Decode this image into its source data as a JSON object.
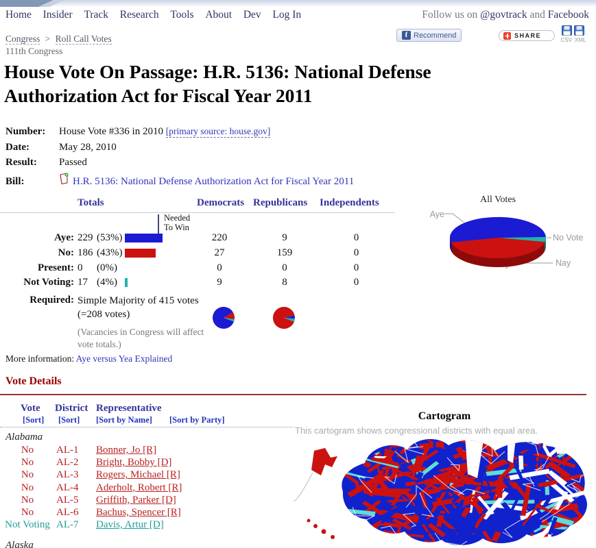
{
  "header": {
    "nav": [
      "Home",
      "Insider",
      "Track",
      "Research",
      "Tools",
      "About",
      "Dev",
      "Log In"
    ],
    "follow": {
      "prefix": "Follow us on",
      "twitter": "@govtrack",
      "and": "and",
      "facebook": "Facebook"
    },
    "breadcrumb": {
      "congress": "Congress",
      "sep": ">",
      "rollcall": "Roll Call Votes"
    },
    "session": "111th Congress",
    "buttons": {
      "recommend": "Recommend",
      "share": "SHARE",
      "csv": "CSV",
      "xml": "XML"
    }
  },
  "title": "House Vote On Passage: H.R. 5136: National Defense Authorization Act for Fiscal Year 2011",
  "meta": {
    "number_label": "Number:",
    "number_value": "House Vote #336 in 2010",
    "number_link": "[primary source: house.gov]",
    "date_label": "Date:",
    "date_value": "May 28, 2010",
    "result_label": "Result:",
    "result_value": "Passed",
    "bill_label": "Bill:",
    "bill_link": "H.R. 5136: National Defense Authorization Act for Fiscal Year 2011"
  },
  "totals": {
    "headers": {
      "totals": "Totals",
      "democrats": "Democrats",
      "republicans": "Republicans",
      "independents": "Independents"
    },
    "needed_line1": "Needed",
    "needed_line2": "To Win",
    "rows": [
      {
        "label": "Aye:",
        "count": "229",
        "pct": "(53%)",
        "d": "220",
        "r": "9",
        "i": "0"
      },
      {
        "label": "No:",
        "count": "186",
        "pct": "(43%)",
        "d": "27",
        "r": "159",
        "i": "0"
      },
      {
        "label": "Present:",
        "count": "0",
        "pct": "(0%)",
        "d": "0",
        "r": "0",
        "i": "0"
      },
      {
        "label": "Not Voting:",
        "count": "17",
        "pct": "(4%)",
        "d": "9",
        "r": "8",
        "i": "0"
      }
    ],
    "required_label": "Required:",
    "required_value": "Simple Majority of 415 votes (=208 votes)",
    "vacancies": "(Vacancies in Congress will affect vote totals.)"
  },
  "more_info": {
    "label": "More information:",
    "link": "Aye versus Yea Explained"
  },
  "chart_data": [
    {
      "type": "pie",
      "title": "All Votes",
      "labels": [
        "Aye",
        "Nay",
        "No Vote"
      ],
      "values": [
        229,
        186,
        17
      ],
      "colors": [
        "#1b1bd3",
        "#cc1111",
        "#1fb3ab"
      ],
      "style": "3d",
      "legend_position": "callouts"
    },
    {
      "type": "pie",
      "title": "Democrats",
      "labels": [
        "Aye",
        "No",
        "Not Voting"
      ],
      "values": [
        220,
        27,
        9
      ],
      "colors": [
        "#1b1bd3",
        "#cc1111",
        "#1fb3ab"
      ]
    },
    {
      "type": "pie",
      "title": "Republicans",
      "labels": [
        "Aye",
        "No",
        "Not Voting"
      ],
      "values": [
        9,
        159,
        8
      ],
      "colors": [
        "#1b1bd3",
        "#cc1111",
        "#1fb3ab"
      ]
    },
    {
      "type": "bar",
      "title": "Vote Totals",
      "categories": [
        "Aye",
        "No",
        "Present",
        "Not Voting"
      ],
      "values": [
        229,
        186,
        0,
        17
      ],
      "colors": [
        "#1b1bd3",
        "#cc1111",
        "#888888",
        "#1fb3ab"
      ],
      "needed_to_win": 208,
      "needed_label": "Needed To Win"
    }
  ],
  "vote_details": {
    "heading": "Vote Details",
    "col_vote": "Vote",
    "col_vote_sort": "[Sort]",
    "col_district": "District",
    "col_district_sort": "[Sort]",
    "col_rep": "Representative",
    "col_rep_sort_name": "[Sort by Name]",
    "col_rep_sort_party": "[Sort by Party]",
    "state1": "Alabama",
    "rows": [
      {
        "vote": "No",
        "district": "AL-1",
        "rep": "Bonner, Jo [R]"
      },
      {
        "vote": "No",
        "district": "AL-2",
        "rep": "Bright, Bobby [D]"
      },
      {
        "vote": "No",
        "district": "AL-3",
        "rep": "Rogers, Michael [R]"
      },
      {
        "vote": "No",
        "district": "AL-4",
        "rep": "Aderholt, Robert [R]"
      },
      {
        "vote": "No",
        "district": "AL-5",
        "rep": "Griffith, Parker [D]"
      },
      {
        "vote": "No",
        "district": "AL-6",
        "rep": "Bachus, Spencer [R]"
      },
      {
        "vote": "Not Voting",
        "district": "AL-7",
        "rep": "Davis, Artur [D]"
      }
    ],
    "state2": "Alaska"
  },
  "cartogram": {
    "title": "Cartogram",
    "caption": "This cartogram shows congressional districts with equal area.",
    "colors": {
      "red": "#cc1111",
      "blue": "#1122cc",
      "teal": "#5fdcd6",
      "border": "#ffffff"
    }
  },
  "colors": {
    "aye_blue": "#1b1bd3",
    "nay_red": "#cc1111",
    "not_voting_teal": "#1fb3ab",
    "no_text_red": "#bb2020",
    "not_voting_text_teal": "#219e98",
    "header_blue": "#333399",
    "nav_blue": "#333366",
    "link_blue": "#3333bb",
    "heading_red": "#990000",
    "rule_red": "#993333",
    "muted_gray": "#888888"
  }
}
